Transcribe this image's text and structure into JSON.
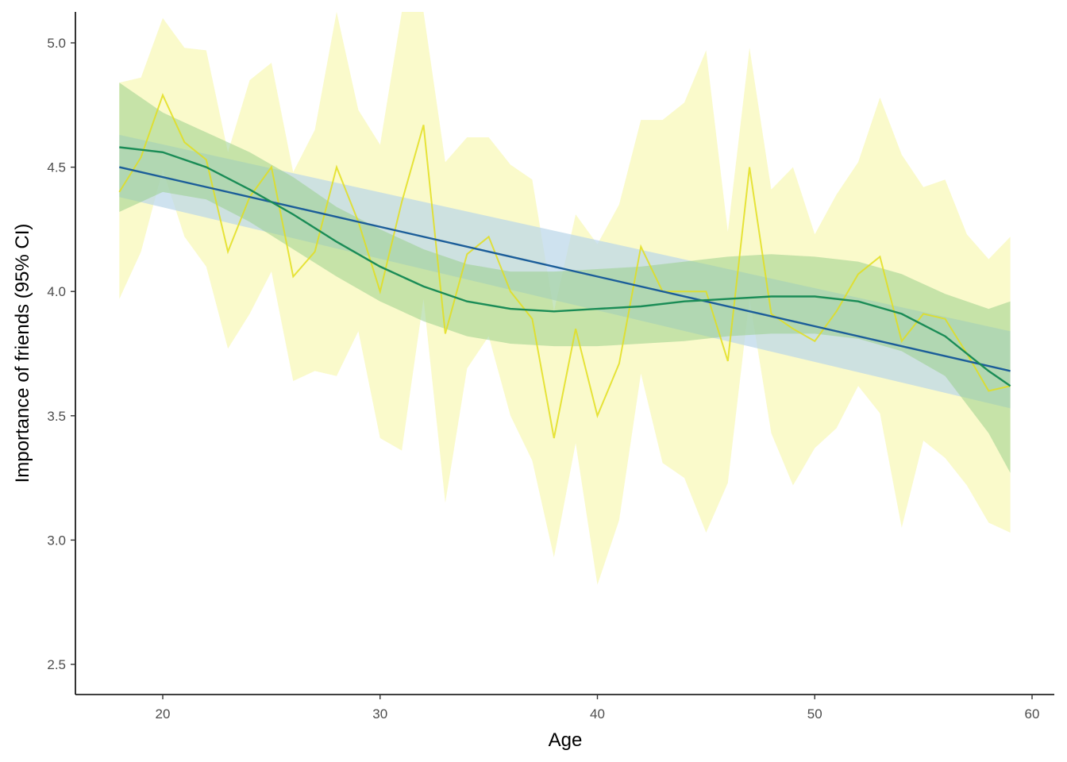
{
  "chart_data": {
    "type": "line",
    "title": "",
    "xlabel": "Age",
    "ylabel": "Importance of friends (95% CI)",
    "xlim": [
      16,
      61
    ],
    "ylim": [
      2.38,
      5.13
    ],
    "xticks": [
      20,
      30,
      40,
      50,
      60
    ],
    "yticks": [
      2.5,
      3.0,
      3.5,
      4.0,
      4.5,
      5.0
    ],
    "ytick_labels": [
      "2.5",
      "3.0",
      "3.5",
      "4.0",
      "4.5",
      "5.0"
    ],
    "grid": false,
    "legend": "none",
    "series": [
      {
        "kind": "observed-mean",
        "color": "#e2de1f",
        "band_color": "#fafac8",
        "x": [
          18,
          19,
          20,
          21,
          22,
          23,
          24,
          25,
          26,
          27,
          28,
          29,
          30,
          31,
          32,
          33,
          34,
          35,
          36,
          37,
          38,
          39,
          40,
          41,
          42,
          43,
          44,
          45,
          46,
          47,
          48,
          49,
          50,
          51,
          52,
          53,
          54,
          55,
          56,
          57,
          58,
          59
        ],
        "values": [
          4.4,
          4.54,
          4.79,
          4.6,
          4.53,
          4.16,
          4.38,
          4.5,
          4.06,
          4.16,
          4.5,
          4.28,
          4.0,
          4.36,
          4.67,
          3.83,
          4.15,
          4.22,
          4.0,
          3.89,
          3.41,
          3.85,
          3.5,
          3.71,
          4.18,
          4.0,
          4.0,
          4.0,
          3.72,
          4.5,
          3.91,
          3.85,
          3.8,
          3.92,
          4.07,
          4.14,
          3.8,
          3.91,
          3.89,
          3.75,
          3.6,
          3.62
        ],
        "lower": [
          3.97,
          4.16,
          4.49,
          4.22,
          4.1,
          3.77,
          3.91,
          4.08,
          3.64,
          3.68,
          3.66,
          3.84,
          3.41,
          3.36,
          3.97,
          3.15,
          3.69,
          3.82,
          3.5,
          3.32,
          2.93,
          3.39,
          2.82,
          3.08,
          3.67,
          3.31,
          3.25,
          3.03,
          3.23,
          3.97,
          3.43,
          3.22,
          3.37,
          3.45,
          3.62,
          3.51,
          3.05,
          3.4,
          3.33,
          3.22,
          3.07,
          3.03
        ],
        "upper": [
          4.84,
          4.86,
          5.1,
          4.98,
          4.97,
          4.56,
          4.85,
          4.92,
          4.48,
          4.65,
          5.25,
          4.73,
          4.59,
          5.25,
          5.25,
          4.52,
          4.62,
          4.62,
          4.51,
          4.45,
          3.92,
          4.31,
          4.19,
          4.35,
          4.69,
          4.69,
          4.76,
          4.97,
          4.24,
          4.98,
          4.41,
          4.5,
          4.23,
          4.39,
          4.52,
          4.78,
          4.55,
          4.42,
          4.45,
          4.23,
          4.13,
          4.22
        ]
      },
      {
        "kind": "linear-fit",
        "color": "#1b5d99",
        "band_color": "#b9d6e8",
        "x": [
          18,
          59
        ],
        "values": [
          4.5,
          3.68
        ],
        "lower": [
          4.38,
          3.53
        ],
        "upper": [
          4.63,
          3.84
        ]
      },
      {
        "kind": "smooth-fit",
        "color": "#1a8c56",
        "band_color": "#9bcf8c",
        "x": [
          18,
          20,
          22,
          24,
          26,
          28,
          30,
          32,
          34,
          36,
          38,
          40,
          42,
          44,
          46,
          48,
          50,
          52,
          54,
          56,
          58,
          59
        ],
        "values": [
          4.58,
          4.56,
          4.5,
          4.41,
          4.31,
          4.2,
          4.1,
          4.02,
          3.96,
          3.93,
          3.92,
          3.93,
          3.94,
          3.96,
          3.97,
          3.98,
          3.98,
          3.96,
          3.91,
          3.82,
          3.68,
          3.62
        ],
        "lower": [
          4.32,
          4.4,
          4.37,
          4.28,
          4.17,
          4.06,
          3.96,
          3.88,
          3.82,
          3.79,
          3.78,
          3.78,
          3.79,
          3.8,
          3.82,
          3.83,
          3.83,
          3.81,
          3.76,
          3.66,
          3.43,
          3.27
        ],
        "upper": [
          4.84,
          4.72,
          4.64,
          4.56,
          4.46,
          4.34,
          4.25,
          4.17,
          4.11,
          4.08,
          4.08,
          4.09,
          4.1,
          4.12,
          4.14,
          4.15,
          4.14,
          4.12,
          4.07,
          3.99,
          3.93,
          3.96
        ]
      }
    ]
  }
}
